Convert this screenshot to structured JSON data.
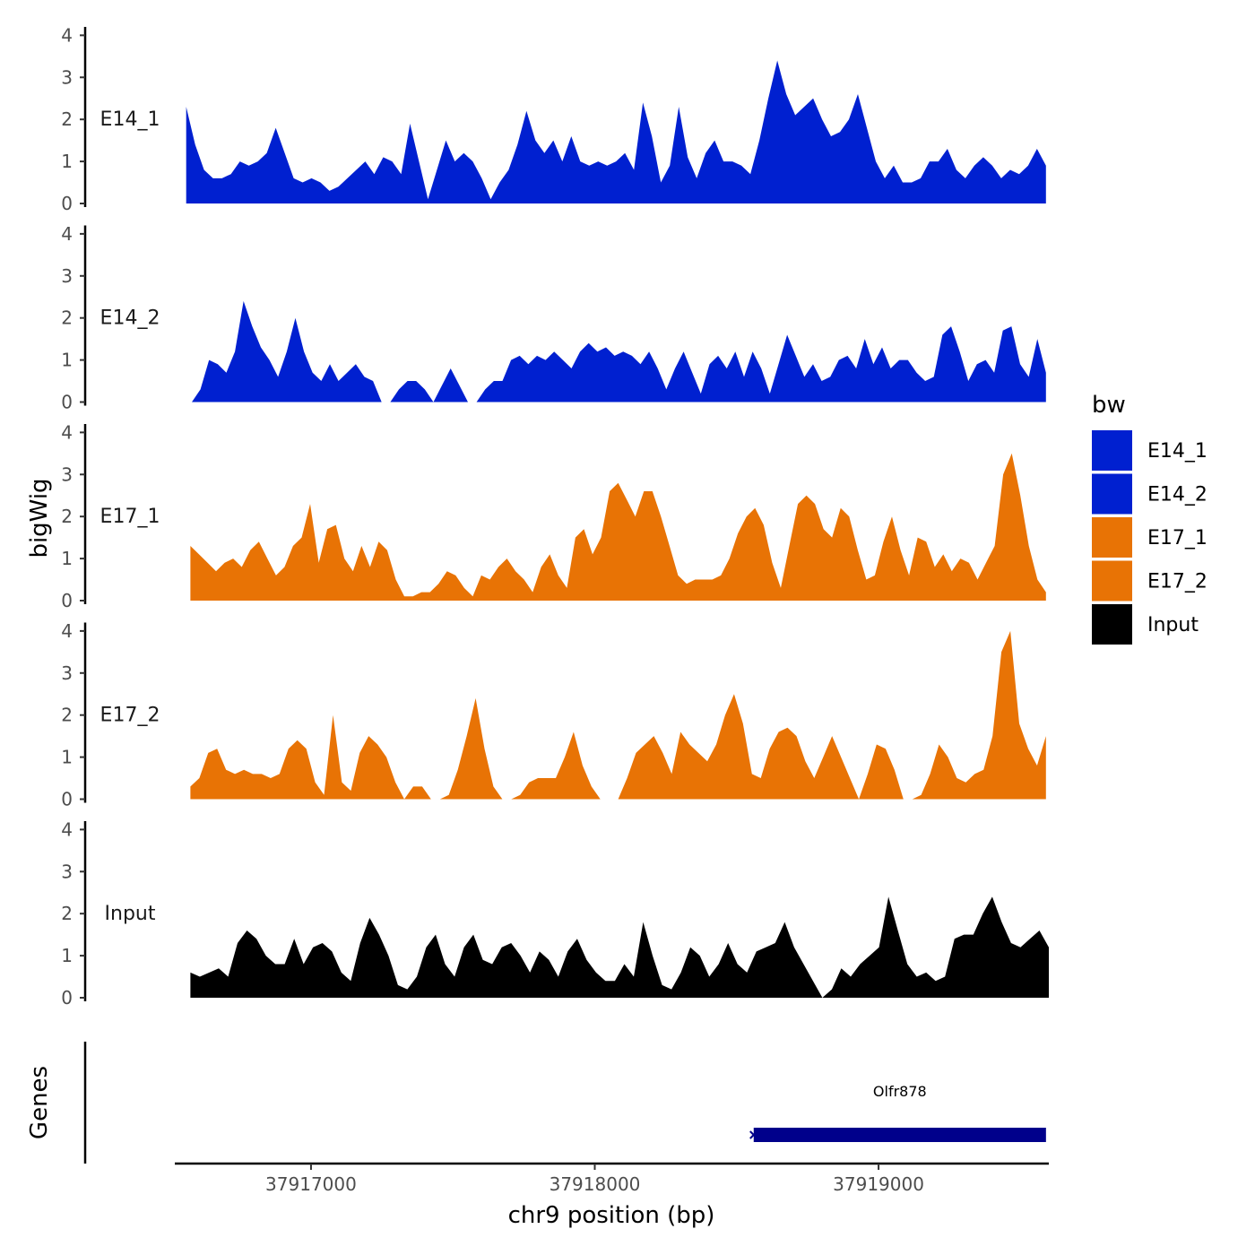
{
  "chart_data": {
    "type": "area",
    "ylabel": "bigWig",
    "xlabel": "chr9 position (bp)",
    "genes_label": "Genes",
    "xlim": [
      37916520,
      37919600
    ],
    "x_ticks": [
      37917000,
      37918000,
      37919000
    ],
    "x_tick_labels": [
      "37917000",
      "37918000",
      "37919000"
    ],
    "ylim": [
      0,
      4.2
    ],
    "y_ticks": [
      0,
      1,
      2,
      3,
      4
    ],
    "y_tick_labels": [
      "0",
      "1",
      "2",
      "3",
      "4"
    ],
    "tracks": [
      {
        "name": "E14_1",
        "color": "#0020D0",
        "x_start": 37916560,
        "x_end": 37919590,
        "values": [
          2.3,
          1.4,
          0.8,
          0.6,
          0.6,
          0.7,
          1.0,
          0.9,
          1.0,
          1.2,
          1.8,
          1.2,
          0.6,
          0.5,
          0.6,
          0.5,
          0.3,
          0.4,
          0.6,
          0.8,
          1.0,
          0.7,
          1.1,
          1.0,
          0.7,
          1.9,
          1.0,
          0.1,
          0.8,
          1.5,
          1.0,
          1.2,
          1.0,
          0.6,
          0.1,
          0.5,
          0.8,
          1.4,
          2.2,
          1.5,
          1.2,
          1.5,
          1.0,
          1.6,
          1.0,
          0.9,
          1.0,
          0.9,
          1.0,
          1.2,
          0.8,
          2.4,
          1.6,
          0.5,
          0.9,
          2.3,
          1.1,
          0.6,
          1.2,
          1.5,
          1.0,
          1.0,
          0.9,
          0.7,
          1.5,
          2.5,
          3.4,
          2.6,
          2.1,
          2.3,
          2.5,
          2.0,
          1.6,
          1.7,
          2.0,
          2.6,
          1.8,
          1.0,
          0.6,
          0.9,
          0.5,
          0.5,
          0.6,
          1.0,
          1.0,
          1.3,
          0.8,
          0.6,
          0.9,
          1.1,
          0.9,
          0.6,
          0.8,
          0.7,
          0.9,
          1.3,
          0.9
        ]
      },
      {
        "name": "E14_2",
        "color": "#0020D0",
        "x_start": 37916580,
        "x_end": 37919590,
        "values": [
          0.0,
          0.3,
          1.0,
          0.9,
          0.7,
          1.2,
          2.4,
          1.8,
          1.3,
          1.0,
          0.6,
          1.2,
          2.0,
          1.2,
          0.7,
          0.5,
          0.9,
          0.5,
          0.7,
          0.9,
          0.6,
          0.5,
          0.0,
          0.0,
          0.3,
          0.5,
          0.5,
          0.3,
          0.0,
          0.4,
          0.8,
          0.4,
          0.0,
          0.0,
          0.3,
          0.5,
          0.5,
          1.0,
          1.1,
          0.9,
          1.1,
          1.0,
          1.2,
          1.0,
          0.8,
          1.2,
          1.4,
          1.2,
          1.3,
          1.1,
          1.2,
          1.1,
          0.9,
          1.2,
          0.8,
          0.3,
          0.8,
          1.2,
          0.7,
          0.2,
          0.9,
          1.1,
          0.8,
          1.2,
          0.6,
          1.2,
          0.8,
          0.2,
          0.9,
          1.6,
          1.1,
          0.6,
          0.9,
          0.5,
          0.6,
          1.0,
          1.1,
          0.8,
          1.5,
          0.9,
          1.3,
          0.8,
          1.0,
          1.0,
          0.7,
          0.5,
          0.6,
          1.6,
          1.8,
          1.2,
          0.5,
          0.9,
          1.0,
          0.7,
          1.7,
          1.8,
          0.9,
          0.6,
          1.5,
          0.7
        ]
      },
      {
        "name": "E17_1",
        "color": "#E87305",
        "x_start": 37916575,
        "x_end": 37919590,
        "values": [
          1.3,
          1.1,
          0.9,
          0.7,
          0.9,
          1.0,
          0.8,
          1.2,
          1.4,
          1.0,
          0.6,
          0.8,
          1.3,
          1.5,
          2.3,
          0.9,
          1.7,
          1.8,
          1.0,
          0.7,
          1.3,
          0.8,
          1.4,
          1.2,
          0.5,
          0.1,
          0.1,
          0.2,
          0.2,
          0.4,
          0.7,
          0.6,
          0.3,
          0.1,
          0.6,
          0.5,
          0.8,
          1.0,
          0.7,
          0.5,
          0.2,
          0.8,
          1.1,
          0.6,
          0.3,
          1.5,
          1.7,
          1.1,
          1.5,
          2.6,
          2.8,
          2.4,
          2.0,
          2.6,
          2.6,
          2.0,
          1.3,
          0.6,
          0.4,
          0.5,
          0.5,
          0.5,
          0.6,
          1.0,
          1.6,
          2.0,
          2.2,
          1.8,
          0.9,
          0.3,
          1.3,
          2.3,
          2.5,
          2.3,
          1.7,
          1.5,
          2.2,
          2.0,
          1.2,
          0.5,
          0.6,
          1.4,
          2.0,
          1.2,
          0.6,
          1.5,
          1.4,
          0.8,
          1.1,
          0.7,
          1.0,
          0.9,
          0.5,
          0.9,
          1.3,
          3.0,
          3.5,
          2.5,
          1.3,
          0.5,
          0.2
        ]
      },
      {
        "name": "E17_2",
        "color": "#E87305",
        "x_start": 37916575,
        "x_end": 37919590,
        "values": [
          0.3,
          0.5,
          1.1,
          1.2,
          0.7,
          0.6,
          0.7,
          0.6,
          0.6,
          0.5,
          0.6,
          1.2,
          1.4,
          1.2,
          0.4,
          0.1,
          2.0,
          0.4,
          0.2,
          1.1,
          1.5,
          1.3,
          1.0,
          0.4,
          0.0,
          0.3,
          0.3,
          0.0,
          0.0,
          0.1,
          0.7,
          1.5,
          2.4,
          1.2,
          0.3,
          0.0,
          0.0,
          0.1,
          0.4,
          0.5,
          0.5,
          0.5,
          1.0,
          1.6,
          0.8,
          0.3,
          0.0,
          0.0,
          0.0,
          0.5,
          1.1,
          1.3,
          1.5,
          1.1,
          0.6,
          1.6,
          1.3,
          1.1,
          0.9,
          1.3,
          2.0,
          2.5,
          1.8,
          0.6,
          0.5,
          1.2,
          1.6,
          1.7,
          1.5,
          0.9,
          0.5,
          1.0,
          1.5,
          1.0,
          0.5,
          0.0,
          0.6,
          1.3,
          1.2,
          0.7,
          0.0,
          0.0,
          0.1,
          0.6,
          1.3,
          1.0,
          0.5,
          0.4,
          0.6,
          0.7,
          1.5,
          3.5,
          4.0,
          1.8,
          1.2,
          0.8,
          1.5
        ]
      },
      {
        "name": "Input",
        "color": "#000000",
        "x_start": 37916575,
        "x_end": 37919600,
        "values": [
          0.6,
          0.5,
          0.6,
          0.7,
          0.5,
          1.3,
          1.6,
          1.4,
          1.0,
          0.8,
          0.8,
          1.4,
          0.8,
          1.2,
          1.3,
          1.1,
          0.6,
          0.4,
          1.3,
          1.9,
          1.5,
          1.0,
          0.3,
          0.2,
          0.5,
          1.2,
          1.5,
          0.8,
          0.5,
          1.2,
          1.5,
          0.9,
          0.8,
          1.2,
          1.3,
          1.0,
          0.6,
          1.1,
          0.9,
          0.5,
          1.1,
          1.4,
          0.9,
          0.6,
          0.4,
          0.4,
          0.8,
          0.5,
          1.8,
          1.0,
          0.3,
          0.2,
          0.6,
          1.2,
          1.0,
          0.5,
          0.8,
          1.3,
          0.8,
          0.6,
          1.1,
          1.2,
          1.3,
          1.8,
          1.2,
          0.8,
          0.4,
          0.0,
          0.2,
          0.7,
          0.5,
          0.8,
          1.0,
          1.2,
          2.4,
          1.6,
          0.8,
          0.5,
          0.6,
          0.4,
          0.5,
          1.4,
          1.5,
          1.5,
          2.0,
          2.4,
          1.8,
          1.3,
          1.2,
          1.4,
          1.6,
          1.2
        ]
      }
    ],
    "legend_title": "bw",
    "legend": [
      {
        "label": "E14_1",
        "color": "#0020D0"
      },
      {
        "label": "E14_2",
        "color": "#0020D0"
      },
      {
        "label": "E17_1",
        "color": "#E87305"
      },
      {
        "label": "E17_2",
        "color": "#E87305"
      },
      {
        "label": "Input",
        "color": "#000000"
      }
    ],
    "genes": [
      {
        "name": "Olfr878",
        "start": 37918560,
        "end": 37919590,
        "color": "#00008B"
      }
    ]
  }
}
